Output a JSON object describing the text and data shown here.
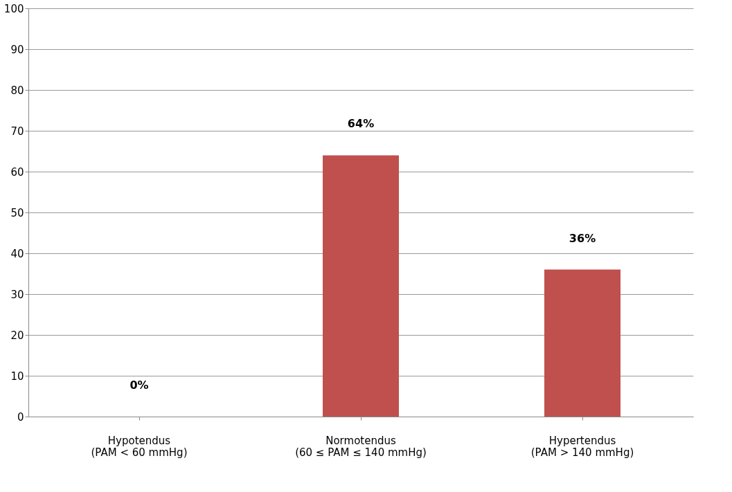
{
  "chart_data": {
    "type": "bar",
    "categories": [
      "Hypotendus\n(PAM < 60 mmHg)",
      "Normotendus\n(60 ≤ PAM ≤ 140 mmHg)",
      "Hypertendus\n(PAM > 140 mmHg)"
    ],
    "values": [
      0,
      64,
      36
    ],
    "color": "#c0504d",
    "value_labels": [
      "0%",
      "64%",
      "36%"
    ],
    "ylim": [
      0,
      100
    ],
    "yticks": [
      0,
      10,
      20,
      30,
      40,
      50,
      60,
      70,
      80,
      90,
      100
    ],
    "grid": "y"
  }
}
